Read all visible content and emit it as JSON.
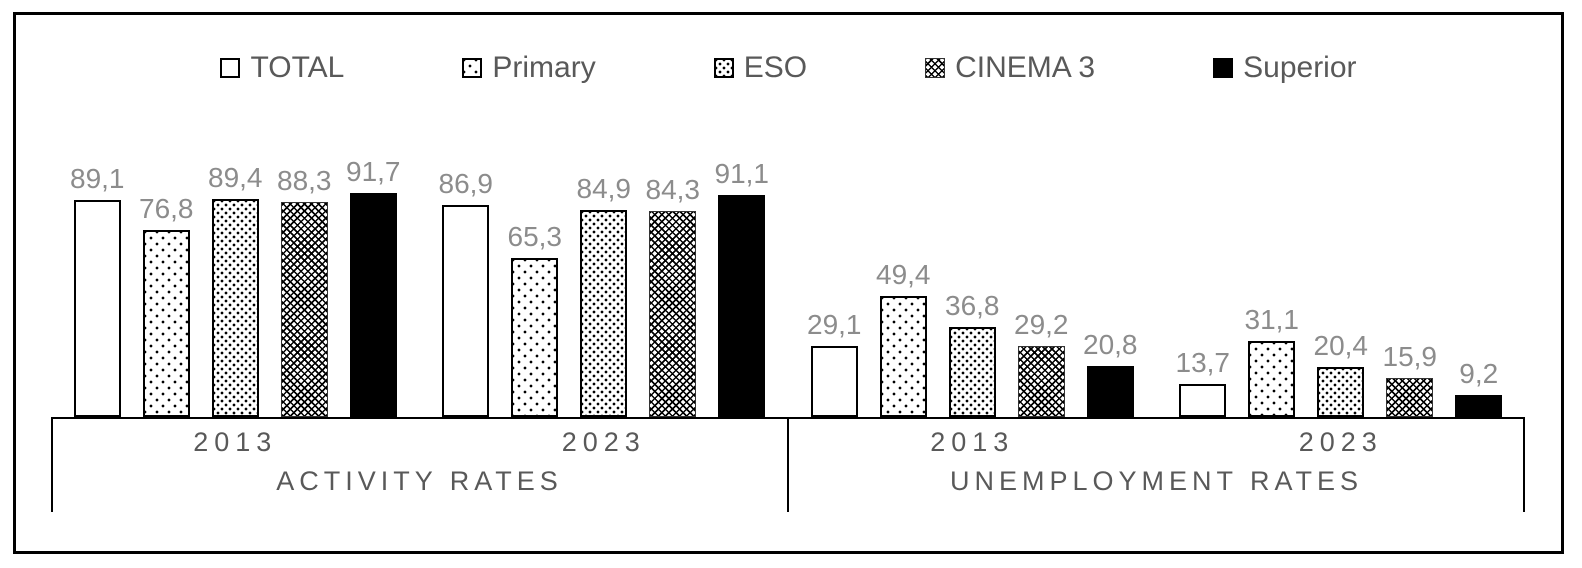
{
  "chart_data": {
    "type": "bar",
    "title": "",
    "legend_position": "top",
    "grid": false,
    "ylim": [
      0,
      100
    ],
    "value_format": "decimal-comma",
    "series_names": [
      "TOTAL",
      "Primary",
      "ESO",
      "CINEMA 3",
      "Superior"
    ],
    "categories": [
      {
        "section": "ACTIVITY RATES",
        "year": "2013"
      },
      {
        "section": "ACTIVITY RATES",
        "year": "2023"
      },
      {
        "section": "UNEMPLOYMENT RATES",
        "year": "2013"
      },
      {
        "section": "UNEMPLOYMENT RATES",
        "year": "2023"
      }
    ],
    "series": [
      {
        "name": "TOTAL",
        "pattern": "plain",
        "values": [
          89.1,
          86.9,
          29.1,
          13.7
        ]
      },
      {
        "name": "Primary",
        "pattern": "dots-sparse",
        "values": [
          76.8,
          65.3,
          49.4,
          31.1
        ]
      },
      {
        "name": "ESO",
        "pattern": "dots-dense",
        "values": [
          89.4,
          84.9,
          36.8,
          20.4
        ]
      },
      {
        "name": "CINEMA 3",
        "pattern": "crosshatch",
        "values": [
          88.3,
          84.3,
          29.2,
          15.9
        ]
      },
      {
        "name": "Superior",
        "pattern": "solid",
        "values": [
          91.7,
          91.1,
          20.8,
          9.2
        ]
      }
    ],
    "axis": {
      "years": [
        "2013",
        "2023",
        "2013",
        "2023"
      ],
      "sections": [
        "ACTIVITY RATES",
        "UNEMPLOYMENT RATES"
      ]
    },
    "colors": {
      "bar_black": "#000000",
      "bar_outline": "#000000",
      "data_label": "#8c8c8c",
      "axis_text": "#595959",
      "frame": "#000000"
    }
  }
}
